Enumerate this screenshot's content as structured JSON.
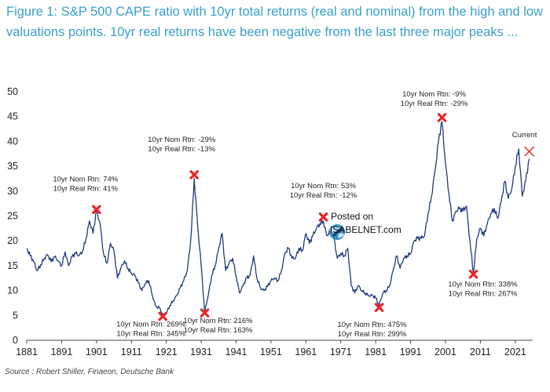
{
  "title": "Figure 1: S&P 500 CAPE ratio with 10yr total returns (real and nominal) from the high and low valuations points. 10yr real returns have been negative from the last three major peaks ...",
  "source": "Source : Robert Shiller, Finaeon, Deutsche Bank",
  "watermark": {
    "line1": "Posted on",
    "line2": "ISABELNET.com"
  },
  "colors": {
    "series": "#1f3b7a",
    "marker": "#e8262a",
    "title": "#3a9fc9"
  },
  "chart_data": {
    "type": "line",
    "title": "",
    "xlabel": "",
    "ylabel": "",
    "xlim": [
      1881,
      2026
    ],
    "ylim": [
      0,
      50
    ],
    "x_ticks": [
      "1881",
      "1891",
      "1901",
      "1911",
      "1921",
      "1931",
      "1941",
      "1951",
      "1961",
      "1971",
      "1981",
      "1991",
      "2001",
      "2011",
      "2021"
    ],
    "y_ticks": [
      "0",
      "5",
      "10",
      "15",
      "20",
      "25",
      "30",
      "35",
      "40",
      "45",
      "50"
    ],
    "grid": false,
    "series": [
      {
        "name": "",
        "points": [
          [
            1881,
            18.5
          ],
          [
            1882,
            17.0
          ],
          [
            1883,
            15.8
          ],
          [
            1884,
            14.0
          ],
          [
            1885,
            15.2
          ],
          [
            1886,
            16.5
          ],
          [
            1887,
            17.2
          ],
          [
            1888,
            15.8
          ],
          [
            1889,
            16.8
          ],
          [
            1890,
            16.0
          ],
          [
            1891,
            15.0
          ],
          [
            1892,
            17.8
          ],
          [
            1893,
            15.0
          ],
          [
            1894,
            16.8
          ],
          [
            1895,
            17.5
          ],
          [
            1896,
            17.0
          ],
          [
            1897,
            18.0
          ],
          [
            1898,
            20.5
          ],
          [
            1899,
            24.0
          ],
          [
            1900,
            21.5
          ],
          [
            1901,
            26.0
          ],
          [
            1902,
            23.5
          ],
          [
            1903,
            17.5
          ],
          [
            1904,
            15.5
          ],
          [
            1905,
            19.5
          ],
          [
            1906,
            18.0
          ],
          [
            1907,
            12.5
          ],
          [
            1908,
            14.5
          ],
          [
            1909,
            16.0
          ],
          [
            1910,
            14.5
          ],
          [
            1911,
            13.5
          ],
          [
            1912,
            13.0
          ],
          [
            1913,
            11.5
          ],
          [
            1914,
            10.0
          ],
          [
            1915,
            11.5
          ],
          [
            1916,
            12.0
          ],
          [
            1917,
            9.0
          ],
          [
            1918,
            6.8
          ],
          [
            1919,
            6.5
          ],
          [
            1920,
            5.0
          ],
          [
            1921,
            5.5
          ],
          [
            1922,
            7.0
          ],
          [
            1923,
            8.0
          ],
          [
            1924,
            9.0
          ],
          [
            1925,
            10.5
          ],
          [
            1926,
            12.0
          ],
          [
            1927,
            14.0
          ],
          [
            1928,
            20.0
          ],
          [
            1929,
            32.6
          ],
          [
            1930,
            23.0
          ],
          [
            1931,
            15.0
          ],
          [
            1932,
            5.6
          ],
          [
            1933,
            9.0
          ],
          [
            1934,
            13.0
          ],
          [
            1935,
            15.0
          ],
          [
            1936,
            18.5
          ],
          [
            1937,
            21.5
          ],
          [
            1938,
            14.0
          ],
          [
            1939,
            15.5
          ],
          [
            1940,
            16.5
          ],
          [
            1941,
            13.0
          ],
          [
            1942,
            9.5
          ],
          [
            1943,
            11.0
          ],
          [
            1944,
            12.5
          ],
          [
            1945,
            13.0
          ],
          [
            1946,
            17.0
          ],
          [
            1947,
            12.5
          ],
          [
            1948,
            10.5
          ],
          [
            1949,
            10.0
          ],
          [
            1950,
            10.8
          ],
          [
            1951,
            12.0
          ],
          [
            1952,
            12.5
          ],
          [
            1953,
            12.0
          ],
          [
            1954,
            14.0
          ],
          [
            1955,
            17.5
          ],
          [
            1956,
            18.5
          ],
          [
            1957,
            16.5
          ],
          [
            1958,
            16.5
          ],
          [
            1959,
            18.5
          ],
          [
            1960,
            18.0
          ],
          [
            1961,
            21.5
          ],
          [
            1962,
            19.5
          ],
          [
            1963,
            21.0
          ],
          [
            1964,
            22.5
          ],
          [
            1965,
            23.5
          ],
          [
            1966,
            24.0
          ],
          [
            1967,
            21.0
          ],
          [
            1968,
            22.0
          ],
          [
            1969,
            20.5
          ],
          [
            1970,
            16.5
          ],
          [
            1971,
            17.5
          ],
          [
            1972,
            17.0
          ],
          [
            1973,
            18.5
          ],
          [
            1974,
            11.0
          ],
          [
            1975,
            9.5
          ],
          [
            1976,
            11.0
          ],
          [
            1977,
            10.0
          ],
          [
            1978,
            9.5
          ],
          [
            1979,
            9.0
          ],
          [
            1980,
            9.0
          ],
          [
            1981,
            8.5
          ],
          [
            1982,
            7.0
          ],
          [
            1983,
            9.5
          ],
          [
            1984,
            10.0
          ],
          [
            1985,
            11.0
          ],
          [
            1986,
            14.0
          ],
          [
            1987,
            17.0
          ],
          [
            1988,
            14.5
          ],
          [
            1989,
            16.5
          ],
          [
            1990,
            17.0
          ],
          [
            1991,
            17.5
          ],
          [
            1992,
            20.0
          ],
          [
            1993,
            20.5
          ],
          [
            1994,
            20.5
          ],
          [
            1995,
            21.0
          ],
          [
            1996,
            25.5
          ],
          [
            1997,
            29.0
          ],
          [
            1998,
            34.0
          ],
          [
            1999,
            40.0
          ],
          [
            2000,
            44.0
          ],
          [
            2001,
            35.5
          ],
          [
            2002,
            29.5
          ],
          [
            2003,
            24.0
          ],
          [
            2004,
            26.0
          ],
          [
            2005,
            26.5
          ],
          [
            2006,
            26.0
          ],
          [
            2007,
            27.0
          ],
          [
            2008,
            20.0
          ],
          [
            2009,
            13.5
          ],
          [
            2010,
            20.5
          ],
          [
            2011,
            22.5
          ],
          [
            2012,
            21.0
          ],
          [
            2013,
            23.5
          ],
          [
            2014,
            25.5
          ],
          [
            2015,
            26.5
          ],
          [
            2016,
            24.5
          ],
          [
            2017,
            28.0
          ],
          [
            2018,
            32.0
          ],
          [
            2019,
            28.5
          ],
          [
            2020,
            30.5
          ],
          [
            2021,
            35.0
          ],
          [
            2022,
            38.5
          ],
          [
            2023,
            29.0
          ],
          [
            2024,
            32.0
          ],
          [
            2025,
            36.5
          ]
        ]
      }
    ],
    "peak_markers": [
      {
        "x": 1901,
        "y": 26.3,
        "label": [
          "10yr Nom Rtn: 74%",
          "10yr Real Rtn: 41%"
        ]
      },
      {
        "x": 1920,
        "y": 4.8,
        "label": [
          "10yr Nom Rtn: 269%",
          "10yr Real Rtn: 345%"
        ]
      },
      {
        "x": 1929,
        "y": 33.3,
        "label": [
          "10yr Nom Rtn: -29%",
          "10yr Real Rtn: -13%"
        ]
      },
      {
        "x": 1932,
        "y": 5.5,
        "label": [
          "10yr Nom Rtn: 216%",
          "10yr Real Rtn: 163%"
        ]
      },
      {
        "x": 1966,
        "y": 24.8,
        "label": [
          "10yr Nom Rtn: 53%",
          "10yr Real Rtn: -12%"
        ]
      },
      {
        "x": 1982,
        "y": 6.6,
        "label": [
          "10yr Nom Rtn: 475%",
          "10yr Real Rtn: 299%"
        ]
      },
      {
        "x": 2000,
        "y": 44.8,
        "label": [
          "10yr Nom Rtn: -9%",
          "10yr Real Rtn: -29%"
        ]
      },
      {
        "x": 2009,
        "y": 13.3,
        "label": [
          "10yr Nom Rtn: 338%",
          "10yr Real Rtn: 267%"
        ]
      }
    ],
    "current_marker": {
      "x": 2025,
      "y": 38.0,
      "label": "Current"
    }
  }
}
